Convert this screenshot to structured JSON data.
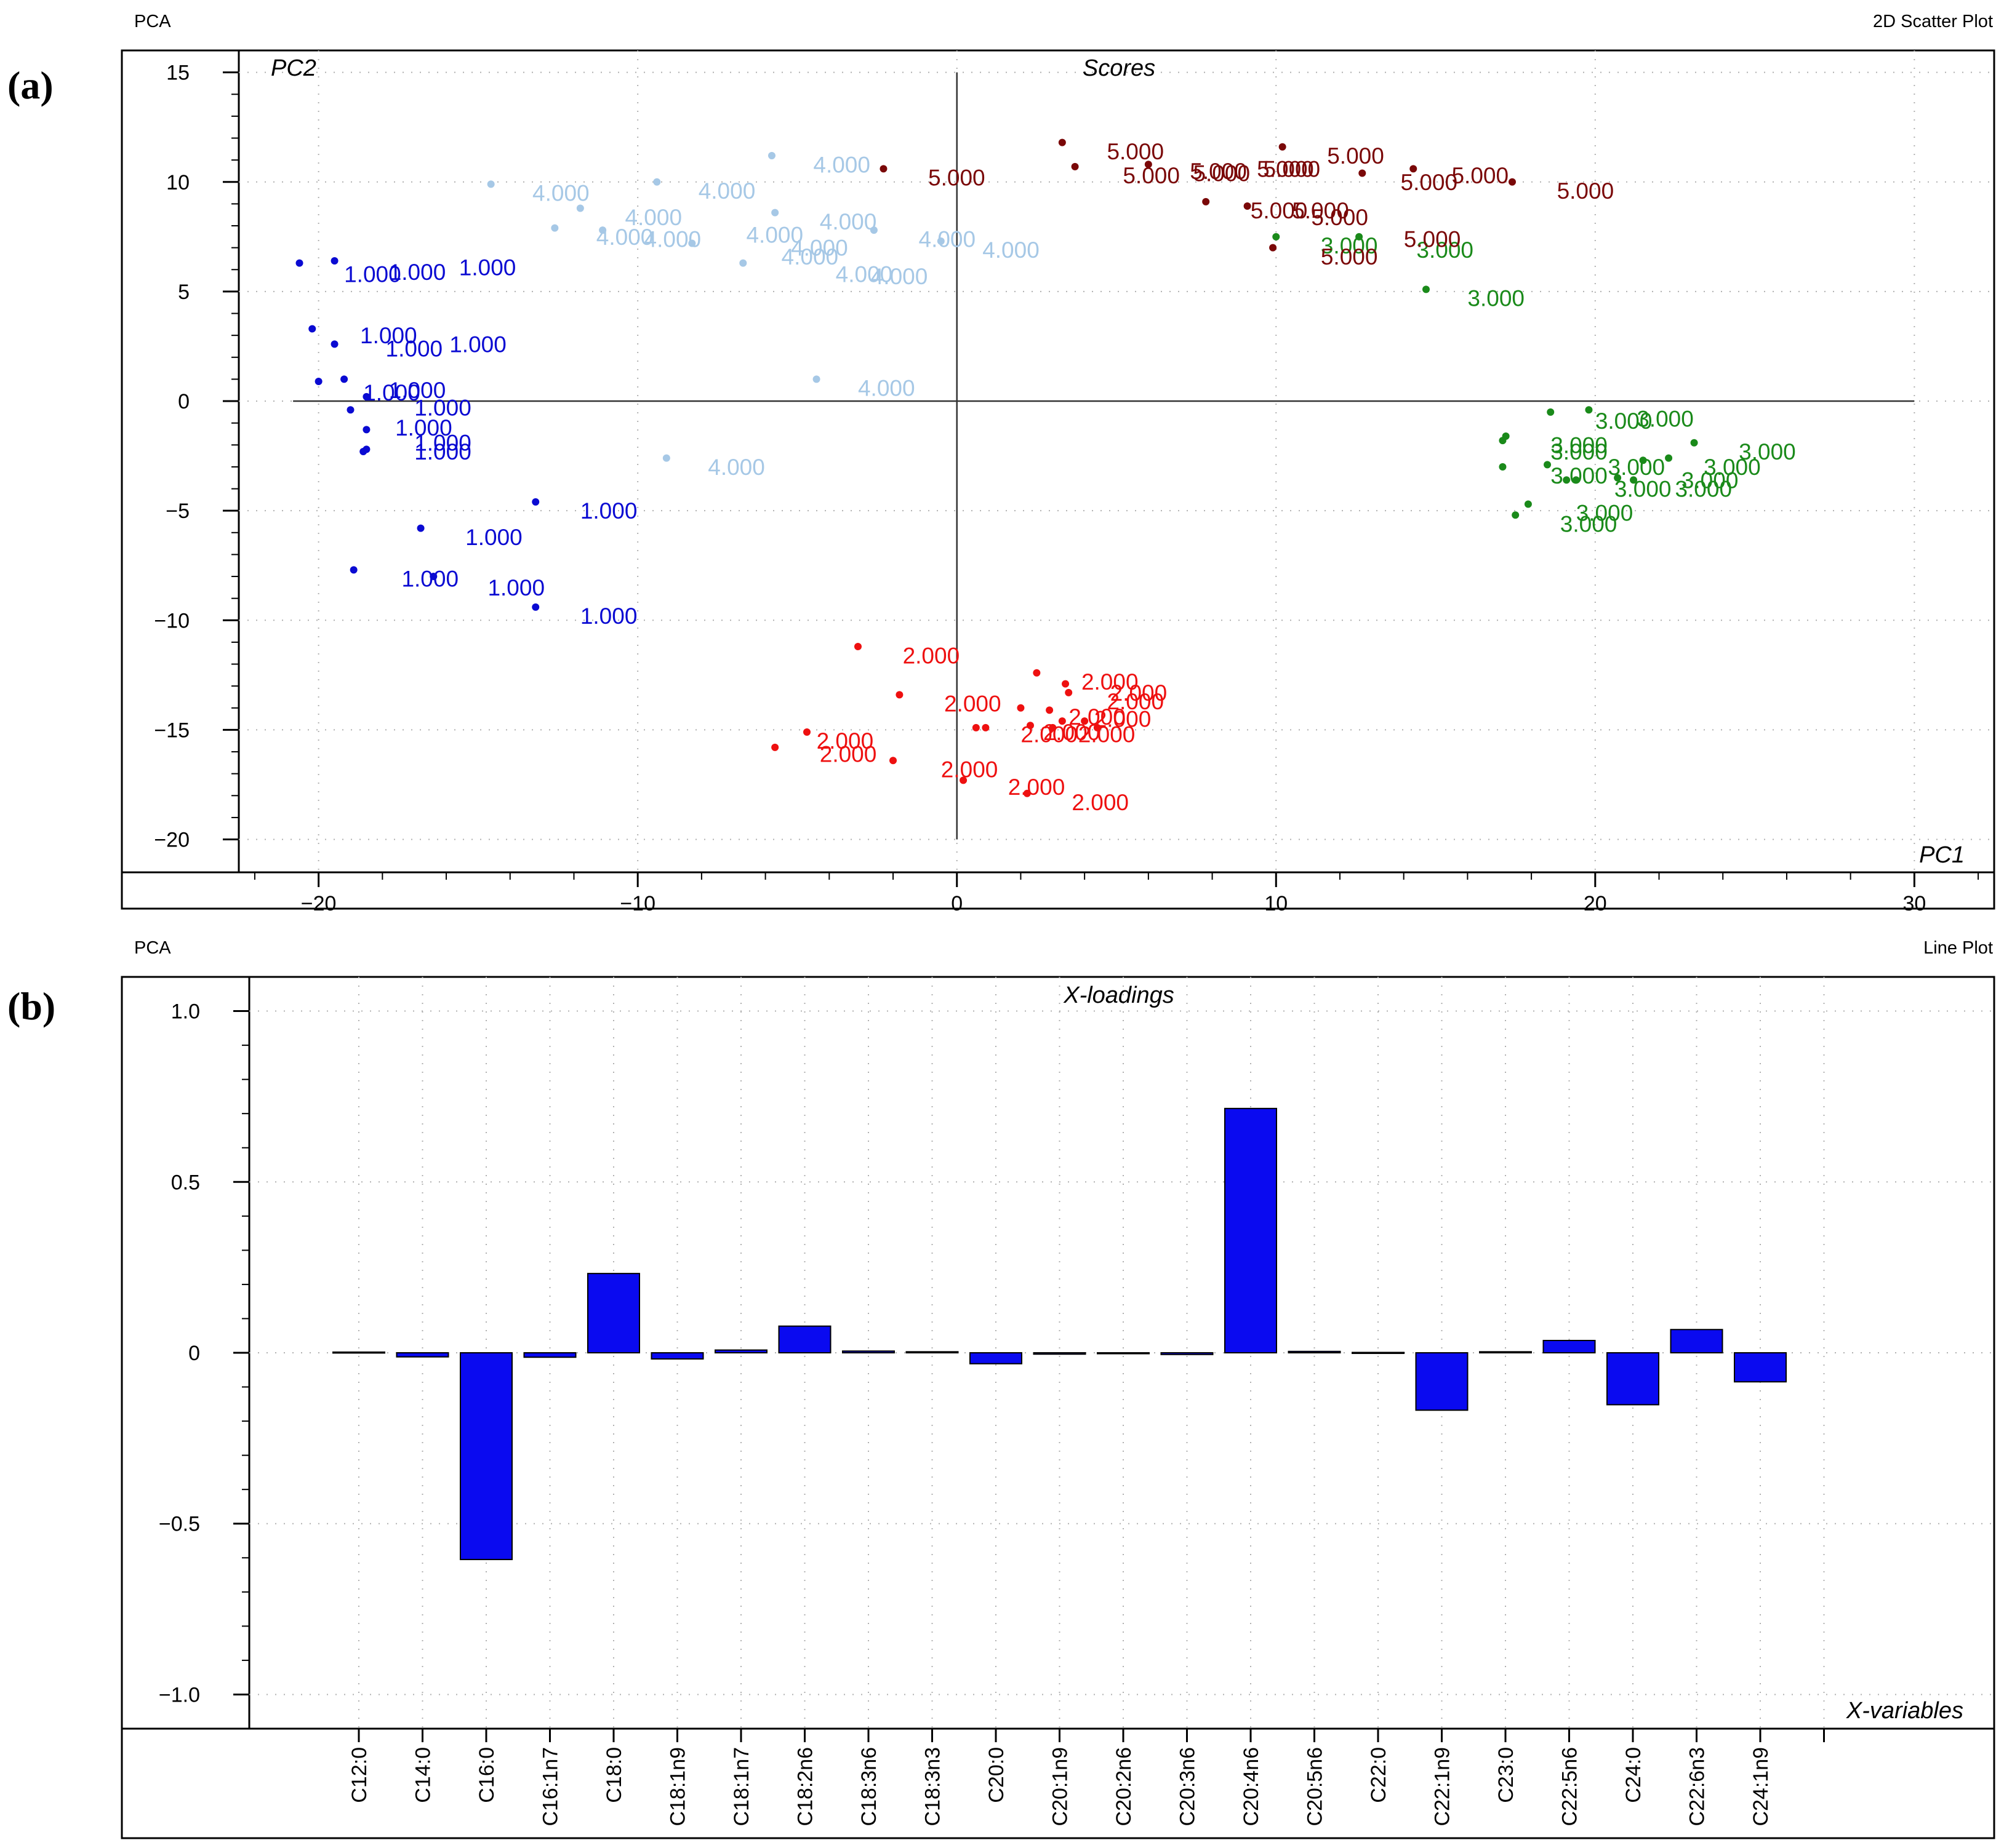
{
  "figure_labels": {
    "a": "(a)",
    "b": "(b)"
  },
  "chart_data": [
    {
      "type": "scatter",
      "header_left": "PCA",
      "header_right": "2D Scatter Plot",
      "title": "Scores",
      "xlabel": "PC1",
      "ylabel": "PC2",
      "xlim": [
        -22.5,
        32.5
      ],
      "ylim": [
        -21.5,
        16
      ],
      "xticks": [
        -20,
        -10,
        0,
        10,
        20,
        30
      ],
      "xtick_labels": [
        "−20",
        "−10",
        "0",
        "10",
        "20",
        "30"
      ],
      "yticks": [
        15,
        10,
        5,
        0,
        -5,
        -10,
        -15,
        -20
      ],
      "ytick_labels": [
        "15",
        "10",
        "5",
        "0",
        "−5",
        "−10",
        "−15",
        "−20"
      ],
      "grid": true,
      "zero_lines": true,
      "series": [
        {
          "name": "1.000",
          "label": "1.000",
          "color": "#0a0ad2",
          "points": [
            [
              -20.6,
              6.3
            ],
            [
              -19.5,
              6.4
            ],
            [
              -20.2,
              3.3
            ],
            [
              -19.5,
              2.6
            ],
            [
              -20,
              0.9
            ],
            [
              -19.2,
              1.0
            ],
            [
              -19,
              -0.4
            ],
            [
              -18.5,
              0.2
            ],
            [
              -18.5,
              -1.3
            ],
            [
              -18.5,
              -2.2
            ],
            [
              -18.6,
              -2.3
            ],
            [
              -16.8,
              -5.8
            ],
            [
              -13.2,
              -4.6
            ],
            [
              -18.9,
              -7.7
            ],
            [
              -16.4,
              -8.0
            ],
            [
              -13.2,
              -9.4
            ]
          ]
        },
        {
          "name": "2.000",
          "label": "2.000",
          "color": "#ee1010",
          "points": [
            [
              -3.1,
              -11.2
            ],
            [
              -1.8,
              -13.4
            ],
            [
              2.5,
              -12.4
            ],
            [
              3.4,
              -12.9
            ],
            [
              3.5,
              -13.3
            ],
            [
              2.0,
              -14.0
            ],
            [
              2.9,
              -14.1
            ],
            [
              4.0,
              -14.6
            ],
            [
              0.6,
              -14.9
            ],
            [
              0.9,
              -14.9
            ],
            [
              2.3,
              -14.8
            ],
            [
              3.0,
              -14.9
            ],
            [
              3.3,
              -14.6
            ],
            [
              4.4,
              -14.9
            ],
            [
              -4.7,
              -15.1
            ],
            [
              -5.7,
              -15.8
            ],
            [
              -2.0,
              -16.4
            ],
            [
              0.2,
              -17.3
            ],
            [
              2.2,
              -17.9
            ]
          ]
        },
        {
          "name": "3.000",
          "label": "3.000",
          "color": "#1a8a1a",
          "points": [
            [
              10,
              7.5
            ],
            [
              12.6,
              7.5
            ],
            [
              14.7,
              5.1
            ],
            [
              18.6,
              -0.5
            ],
            [
              19.8,
              -0.4
            ],
            [
              17.2,
              -1.6
            ],
            [
              17.1,
              -1.8
            ],
            [
              23.1,
              -1.9
            ],
            [
              22.3,
              -2.6
            ],
            [
              21.5,
              -2.7
            ],
            [
              17.1,
              -3.0
            ],
            [
              18.5,
              -2.9
            ],
            [
              19.1,
              -3.6
            ],
            [
              19.4,
              -3.6
            ],
            [
              20.7,
              -3.5
            ],
            [
              21.2,
              -3.6
            ],
            [
              17.9,
              -4.7
            ],
            [
              17.5,
              -5.2
            ]
          ]
        },
        {
          "name": "4.000",
          "label": "4.000",
          "color": "#a6c8e6",
          "points": [
            [
              -14.6,
              9.9
            ],
            [
              -9.4,
              10.0
            ],
            [
              -5.8,
              11.2
            ],
            [
              -11.8,
              8.8
            ],
            [
              -12.6,
              7.9
            ],
            [
              -11.1,
              7.8
            ],
            [
              -8.3,
              7.2
            ],
            [
              -5.7,
              8.6
            ],
            [
              -2.6,
              7.8
            ],
            [
              -6.7,
              6.3
            ],
            [
              -0.5,
              7.3
            ],
            [
              -4.4,
              1.0
            ],
            [
              -9.1,
              -2.6
            ]
          ]
        },
        {
          "name": "5.000",
          "label": "5.000",
          "color": "#7a0808",
          "points": [
            [
              3.3,
              11.8
            ],
            [
              3.7,
              10.7
            ],
            [
              -2.3,
              10.6
            ],
            [
              6.0,
              10.8
            ],
            [
              10.2,
              11.6
            ],
            [
              12.7,
              10.4
            ],
            [
              14.3,
              10.6
            ],
            [
              17.4,
              10.0
            ],
            [
              7.8,
              9.1
            ],
            [
              9.1,
              8.9
            ],
            [
              9.9,
              7.0
            ]
          ]
        }
      ],
      "annotations": [
        {
          "series": "1.000",
          "text": "1.000",
          "x": -19.2,
          "y": 5.8
        },
        {
          "series": "1.000",
          "text": "1.000",
          "x": -17.8,
          "y": 5.9
        },
        {
          "series": "1.000",
          "text": "1.000",
          "x": -15.6,
          "y": 6.1
        },
        {
          "series": "1.000",
          "text": "1.000",
          "x": -18.7,
          "y": 3.0
        },
        {
          "series": "1.000",
          "text": "1.000",
          "x": -17.9,
          "y": 2.4
        },
        {
          "series": "1.000",
          "text": "1.000",
          "x": -15.9,
          "y": 2.6
        },
        {
          "series": "1.000",
          "text": "1.000",
          "x": -18.6,
          "y": 0.4
        },
        {
          "series": "1.000",
          "text": "1.000",
          "x": -17.8,
          "y": 0.5
        },
        {
          "series": "1.000",
          "text": "1.000",
          "x": -17.0,
          "y": -0.3
        },
        {
          "series": "1.000",
          "text": "1.000",
          "x": -17.6,
          "y": -1.2
        },
        {
          "series": "1.000",
          "text": "1.000",
          "x": -17.0,
          "y": -1.9
        },
        {
          "series": "1.000",
          "text": "1.000",
          "x": -17.0,
          "y": -2.3
        },
        {
          "series": "1.000",
          "text": "1.000",
          "x": -11.8,
          "y": -5.0
        },
        {
          "series": "1.000",
          "text": "1.000",
          "x": -15.4,
          "y": -6.2
        },
        {
          "series": "1.000",
          "text": "1.000",
          "x": -17.4,
          "y": -8.1
        },
        {
          "series": "1.000",
          "text": "1.000",
          "x": -14.7,
          "y": -8.5
        },
        {
          "series": "1.000",
          "text": "1.000",
          "x": -11.8,
          "y": -9.8
        },
        {
          "series": "2.000",
          "text": "2.000",
          "x": -1.7,
          "y": -11.6
        },
        {
          "series": "2.000",
          "text": "2.000",
          "x": -0.4,
          "y": -13.8
        },
        {
          "series": "2.000",
          "text": "2.000",
          "x": 3.9,
          "y": -12.8
        },
        {
          "series": "2.000",
          "text": "2.000",
          "x": 4.8,
          "y": -13.3
        },
        {
          "series": "2.000",
          "text": "2.000",
          "x": 4.7,
          "y": -13.7
        },
        {
          "series": "2.000",
          "text": "2.000",
          "x": 3.5,
          "y": -14.4
        },
        {
          "series": "2.000",
          "text": "2.000",
          "x": 4.3,
          "y": -14.5
        },
        {
          "series": "2.000",
          "text": "2.000",
          "x": 2.0,
          "y": -15.2
        },
        {
          "series": "2.000",
          "text": "2.000",
          "x": 2.7,
          "y": -15.1
        },
        {
          "series": "2.000",
          "text": "2.000",
          "x": 3.8,
          "y": -15.2
        },
        {
          "series": "2.000",
          "text": "2.000",
          "x": -4.4,
          "y": -15.5
        },
        {
          "series": "2.000",
          "text": "2.000",
          "x": -4.3,
          "y": -16.1
        },
        {
          "series": "2.000",
          "text": "2.000",
          "x": -0.5,
          "y": -16.8
        },
        {
          "series": "2.000",
          "text": "2.000",
          "x": 1.6,
          "y": -17.6
        },
        {
          "series": "2.000",
          "text": "2.000",
          "x": 3.6,
          "y": -18.3
        },
        {
          "series": "3.000",
          "text": "3.000",
          "x": 11.4,
          "y": 7.1
        },
        {
          "series": "3.000",
          "text": "3.000",
          "x": 14.4,
          "y": 6.9
        },
        {
          "series": "3.000",
          "text": "3.000",
          "x": 16.0,
          "y": 4.7
        },
        {
          "series": "3.000",
          "text": "3.000",
          "x": 20.0,
          "y": -0.9
        },
        {
          "series": "3.000",
          "text": "3.000",
          "x": 21.3,
          "y": -0.8
        },
        {
          "series": "3.000",
          "text": "3.000",
          "x": 18.6,
          "y": -2.0
        },
        {
          "series": "3.000",
          "text": "3.000",
          "x": 18.6,
          "y": -2.3
        },
        {
          "series": "3.000",
          "text": "3.000",
          "x": 24.5,
          "y": -2.3
        },
        {
          "series": "3.000",
          "text": "3.000",
          "x": 23.4,
          "y": -3.0
        },
        {
          "series": "3.000",
          "text": "3.000",
          "x": 20.4,
          "y": -3.0
        },
        {
          "series": "3.000",
          "text": "3.000",
          "x": 18.6,
          "y": -3.4
        },
        {
          "series": "3.000",
          "text": "3.000",
          "x": 20.6,
          "y": -4.0
        },
        {
          "series": "3.000",
          "text": "3.000",
          "x": 22.5,
          "y": -4.0
        },
        {
          "series": "3.000",
          "text": "3.000",
          "x": 22.7,
          "y": -3.6
        },
        {
          "series": "3.000",
          "text": "3.000",
          "x": 19.4,
          "y": -5.1
        },
        {
          "series": "3.000",
          "text": "3.000",
          "x": 18.9,
          "y": -5.6
        },
        {
          "series": "4.000",
          "text": "4.000",
          "x": -13.3,
          "y": 9.5
        },
        {
          "series": "4.000",
          "text": "4.000",
          "x": -8.1,
          "y": 9.6
        },
        {
          "series": "4.000",
          "text": "4.000",
          "x": -4.5,
          "y": 10.8
        },
        {
          "series": "4.000",
          "text": "4.000",
          "x": -10.4,
          "y": 8.4
        },
        {
          "series": "4.000",
          "text": "4.000",
          "x": -11.3,
          "y": 7.5
        },
        {
          "series": "4.000",
          "text": "4.000",
          "x": -9.8,
          "y": 7.4
        },
        {
          "series": "4.000",
          "text": "4.000",
          "x": -6.6,
          "y": 7.6
        },
        {
          "series": "4.000",
          "text": "4.000",
          "x": -4.3,
          "y": 8.2
        },
        {
          "series": "4.000",
          "text": "4.000",
          "x": -1.2,
          "y": 7.4
        },
        {
          "series": "4.000",
          "text": "4.000",
          "x": -5.5,
          "y": 6.6
        },
        {
          "series": "4.000",
          "text": "4.000",
          "x": -3.8,
          "y": 5.8
        },
        {
          "series": "4.000",
          "text": "4.000",
          "x": -5.2,
          "y": 7.0
        },
        {
          "series": "4.000",
          "text": "4.000",
          "x": 0.8,
          "y": 6.9
        },
        {
          "series": "4.000",
          "text": "4.000",
          "x": -2.7,
          "y": 5.7
        },
        {
          "series": "4.000",
          "text": "4.000",
          "x": -3.1,
          "y": 0.6
        },
        {
          "series": "4.000",
          "text": "4.000",
          "x": -7.8,
          "y": -3.0
        },
        {
          "series": "5.000",
          "text": "5.000",
          "x": 4.7,
          "y": 11.4
        },
        {
          "series": "5.000",
          "text": "5.000",
          "x": 5.2,
          "y": 10.3
        },
        {
          "series": "5.000",
          "text": "5.000",
          "x": -0.9,
          "y": 10.2
        },
        {
          "series": "5.000",
          "text": "5.000",
          "x": 7.4,
          "y": 10.4
        },
        {
          "series": "5.000",
          "text": "5.000",
          "x": 9.4,
          "y": 10.6
        },
        {
          "series": "5.000",
          "text": "5.000",
          "x": 11.6,
          "y": 11.2
        },
        {
          "series": "5.000",
          "text": "5.000",
          "x": 13.9,
          "y": 10.0
        },
        {
          "series": "5.000",
          "text": "5.000",
          "x": 15.5,
          "y": 10.3
        },
        {
          "series": "5.000",
          "text": "5.000",
          "x": 18.8,
          "y": 9.6
        },
        {
          "series": "5.000",
          "text": "5.000",
          "x": 9.2,
          "y": 8.7
        },
        {
          "series": "5.000",
          "text": "5.000",
          "x": 10.5,
          "y": 8.7
        },
        {
          "series": "5.000",
          "text": "5.000",
          "x": 11.1,
          "y": 8.4
        },
        {
          "series": "5.000",
          "text": "5.000",
          "x": 11.4,
          "y": 6.6
        },
        {
          "series": "5.000",
          "text": "5.000",
          "x": 14.0,
          "y": 7.4
        },
        {
          "series": "5.000",
          "text": "5.000",
          "x": 7.3,
          "y": 10.5
        },
        {
          "series": "5.000",
          "text": "5.000",
          "x": 9.6,
          "y": 10.6
        }
      ]
    },
    {
      "type": "bar",
      "header_left": "PCA",
      "header_right": "Line Plot",
      "title": "X-loadings",
      "xlabel": "X-variables",
      "ylabel": "",
      "ylim": [
        -1.1,
        1.1
      ],
      "yticks": [
        1.0,
        0.5,
        0,
        -0.5,
        -1.0
      ],
      "ytick_labels": [
        "1.0",
        "0.5",
        "0",
        "−0.5",
        "−1.0"
      ],
      "grid": true,
      "bar_color": "#0a0af0",
      "categories": [
        "C12:0",
        "C14:0",
        "C16:0",
        "C16:1n7",
        "C18:0",
        "C18:1n9",
        "C18:1n7",
        "C18:2n6",
        "C18:3n6",
        "C18:3n3",
        "C20:0",
        "C20:1n9",
        "C20:2n6",
        "C20:3n6",
        "C20:4n6",
        "C20:5n6",
        "C22:0",
        "C22:1n9",
        "C23:0",
        "C22:5n6",
        "C24:0",
        "C22:6n3",
        "C24:1n9"
      ],
      "values": [
        0.002,
        -0.012,
        -0.605,
        -0.013,
        0.232,
        -0.018,
        0.008,
        0.078,
        0.005,
        0.003,
        -0.032,
        -0.004,
        -0.002,
        -0.005,
        0.715,
        0.004,
        0.001,
        -0.168,
        0.003,
        0.036,
        -0.152,
        0.068,
        -0.085
      ]
    }
  ]
}
